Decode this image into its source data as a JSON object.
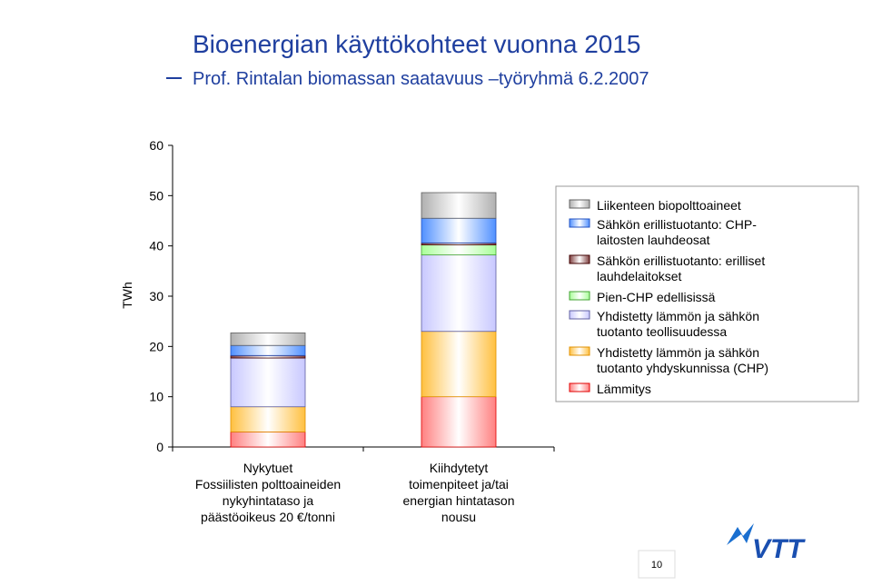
{
  "title": "Bioenergian käyttökohteet vuonna 2015",
  "subtitle": "Prof. Rintalan biomassan saatavuus –työryhmä 6.2.2007",
  "page_number": "10",
  "logo": "VTT",
  "chart_data": {
    "type": "stacked_bar",
    "ylabel": "TWh",
    "categories": [
      "Nykytuet\nFossiilisten polttoaineiden\nnykyhintataso ja\npäästöoikeus 20 €/tonni",
      "Kiihdytetyt\ntoimenpiteet ja/tai\nenergian hintatason\nnousu"
    ],
    "series": [
      {
        "name": "Lämmitys",
        "color": "#ff8080",
        "border": "#e00000",
        "values": [
          3,
          10
        ]
      },
      {
        "name": "Yhdistetty lämmön ja sähkön\ntuotanto yhdyskunnissa (CHP)",
        "color": "#ffc040",
        "border": "#e09000",
        "values": [
          5,
          13
        ]
      },
      {
        "name": "Yhdistetty lämmön ja sähkön\ntuotanto teollisuudessa",
        "color": "#c8c8ff",
        "border": "#6060a0",
        "values": [
          9.7,
          15.2
        ]
      },
      {
        "name": "Pien-CHP edellisissä",
        "color": "#a8ff98",
        "border": "#40a030",
        "values": [
          0,
          2
        ]
      },
      {
        "name": "Sähkön erillistuotanto: erilliset\nlauhdelaitokset",
        "color": "#804040",
        "border": "#400000",
        "values": [
          0.5,
          0.4
        ]
      },
      {
        "name": "Sähkön erillistuotanto: CHP-\nlaitosten lauhdeosat",
        "color": "#5090ff",
        "border": "#2050c0",
        "values": [
          2,
          4.9
        ]
      },
      {
        "name": "Liikenteen biopolttoaineet",
        "color": "#b0b0b0",
        "border": "#606060",
        "values": [
          2.5,
          5.1
        ]
      }
    ],
    "ylim": [
      0,
      60
    ],
    "yticks": [
      0,
      10,
      20,
      30,
      40,
      50,
      60
    ],
    "legend": "right"
  }
}
